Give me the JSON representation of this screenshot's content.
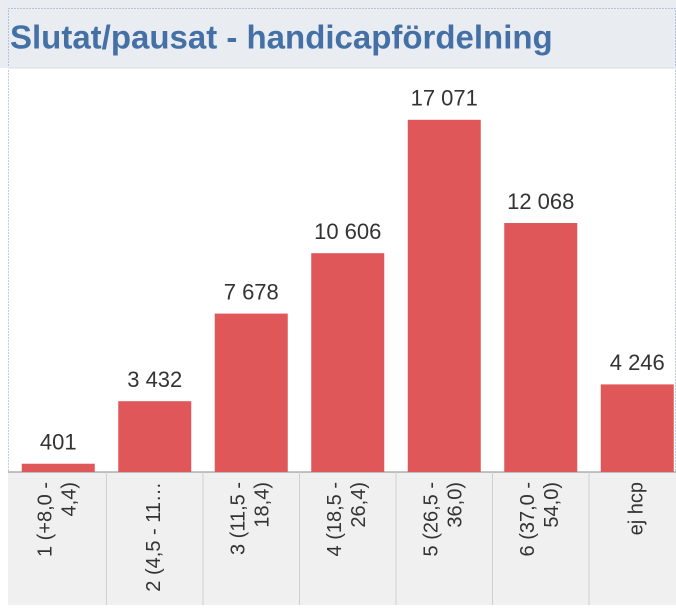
{
  "chart_data": {
    "type": "bar",
    "title": "Slutat/pausat - handicapfördelning",
    "categories": [
      "1 (+8,0 - 4,4)",
      "2 (4,5 - 11…",
      "3 (11,5 - 18,4)",
      "4 (18,5 - 26,4)",
      "5 (26,5 - 36,0)",
      "6 (37,0 - 54,0)",
      "ej hcp"
    ],
    "values": [
      401,
      3432,
      7678,
      10606,
      17071,
      12068,
      4246
    ],
    "value_labels": [
      "401",
      "3 432",
      "7 678",
      "10 606",
      "17 071",
      "12 068",
      "4 246"
    ],
    "color": "#e05759",
    "ylim": [
      0,
      19000
    ]
  }
}
